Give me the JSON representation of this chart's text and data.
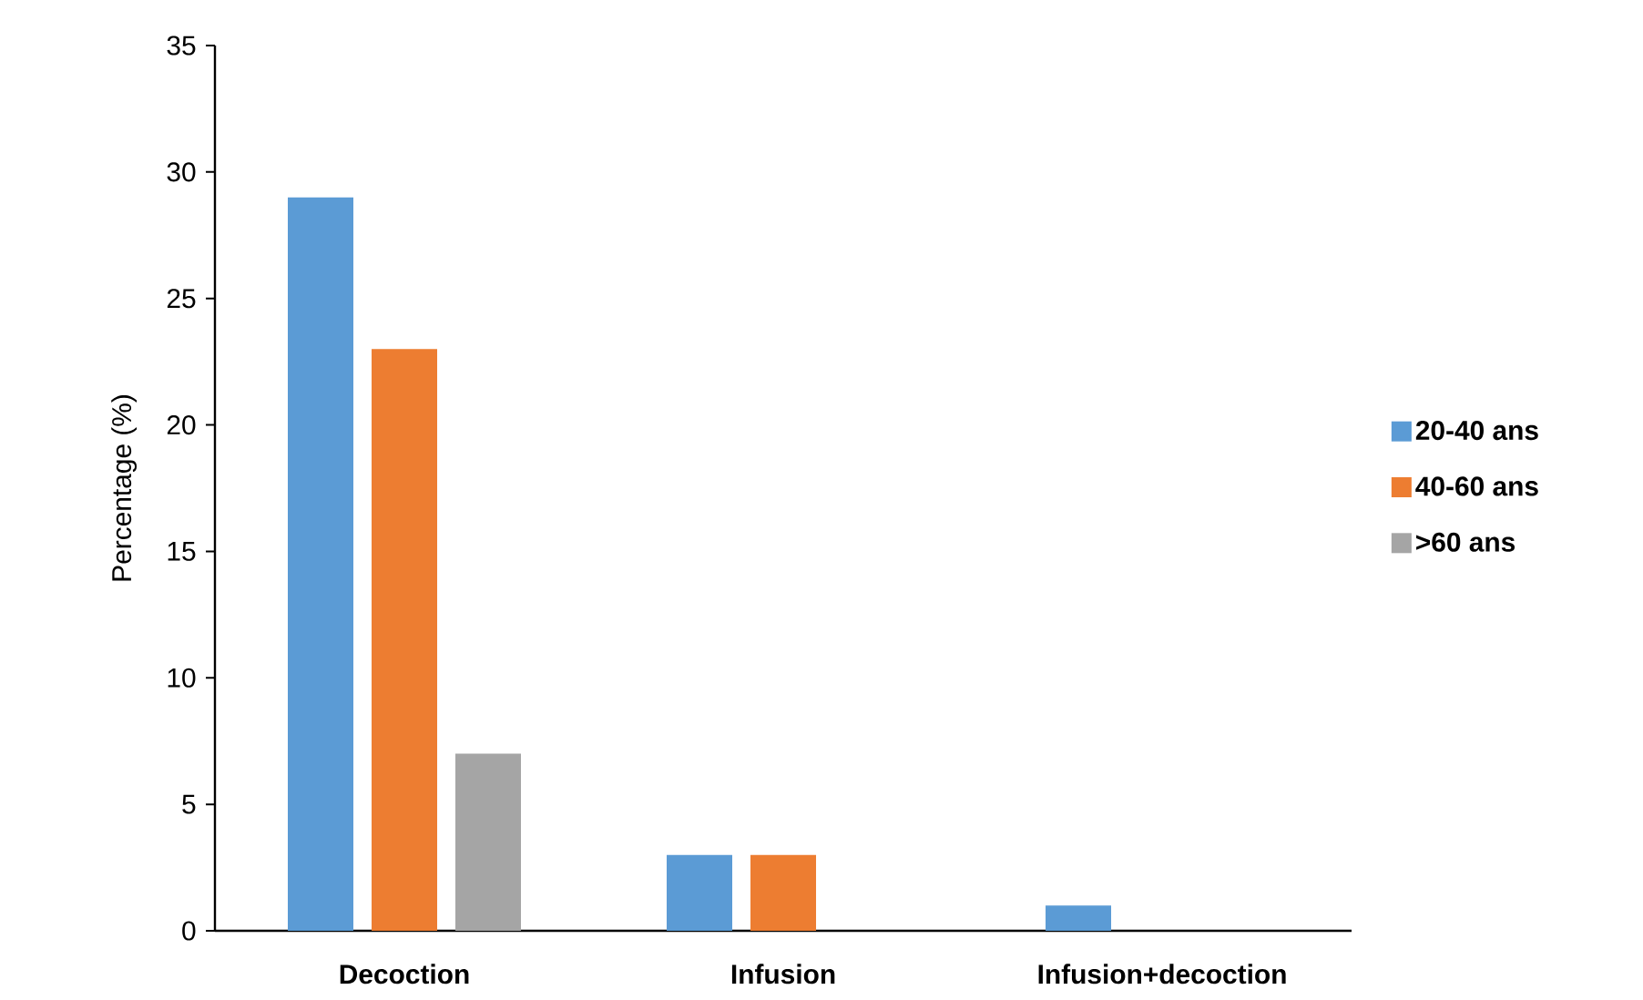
{
  "chart_data": {
    "type": "bar",
    "ylabel": "Percentage (%)",
    "categories": [
      "Decoction",
      "Infusion",
      "Infusion+decoction"
    ],
    "series": [
      {
        "name": "20-40 ans",
        "color": "#5b9bd5",
        "values": [
          29,
          3,
          1
        ]
      },
      {
        "name": "40-60 ans",
        "color": "#ed7d31",
        "values": [
          23,
          3,
          0
        ]
      },
      {
        "name": ">60 ans",
        "color": "#a5a5a5",
        "values": [
          7,
          0,
          0
        ]
      }
    ],
    "ylim": [
      0,
      35
    ],
    "yticks": [
      0,
      5,
      10,
      15,
      20,
      25,
      30,
      35
    ],
    "grid": false,
    "legend": "right"
  }
}
